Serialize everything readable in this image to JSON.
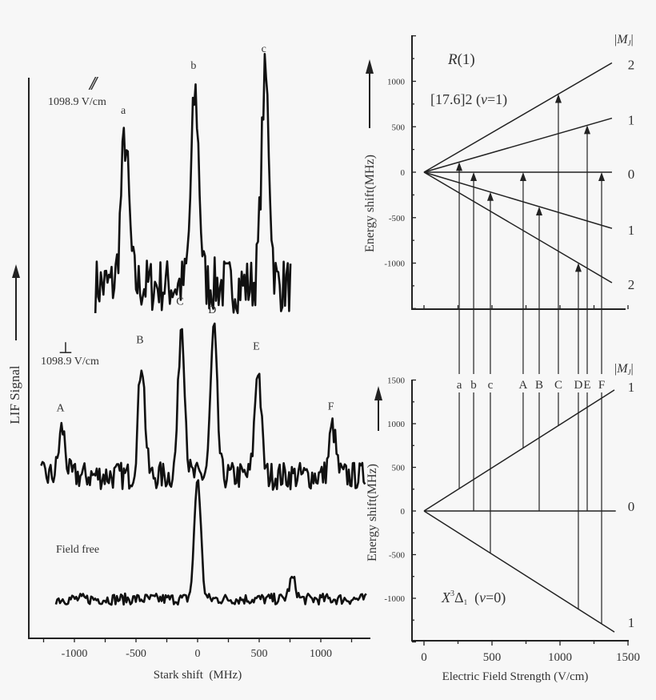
{
  "chart_data": [
    {
      "type": "line",
      "xlabel": "Stark shift  (MHz)",
      "ylabel": "LIF Signal",
      "xlim": [
        -1300,
        1400
      ],
      "xticks": [
        "-1000",
        "-500",
        "0",
        "500",
        "1000"
      ],
      "xtick_values": [
        -1000,
        -500,
        0,
        500,
        1000
      ],
      "series": [
        {
          "polarization": "//",
          "field": "1098.9 V/cm",
          "x_range": [
            -830,
            760
          ],
          "baseline": 63,
          "noise": 5,
          "peaks": [
            {
              "label": "a",
              "x": -590,
              "height": 26
            },
            {
              "label": "b",
              "x": -20,
              "height": 34
            },
            {
              "label": "c",
              "x": 550,
              "height": 37
            }
          ]
        },
        {
          "polarization": "⊥",
          "field": "1098.9 V/cm",
          "x_range": [
            -1270,
            1360
          ],
          "baseline": 29,
          "noise": 2.5,
          "peaks": [
            {
              "label": "A",
              "x": -1100,
              "height": 8.4
            },
            {
              "label": "B",
              "x": -455,
              "height": 20.6
            },
            {
              "label": "C",
              "x": -130,
              "height": 27.4
            },
            {
              "label": "D",
              "x": 132,
              "height": 25.9
            },
            {
              "label": "E",
              "x": 490,
              "height": 19.4
            },
            {
              "label": "F",
              "x": 1095,
              "height": 8.7
            }
          ]
        },
        {
          "polarization": "",
          "field": "Field free",
          "x_range": [
            -1150,
            1370
          ],
          "baseline": 7,
          "noise": 1,
          "peaks": [
            {
              "label": "",
              "x": 0,
              "height": 21.6
            },
            {
              "label": "",
              "x": 770,
              "height": 3.7
            }
          ]
        }
      ]
    },
    {
      "type": "line",
      "title": "R(1)",
      "title_italic": "R",
      "title_rest": "(1)",
      "state": {
        "pre": "[17.6]2 (",
        "v": "v",
        "post": "=1)"
      },
      "ylabel": "Energy shift(MHz)",
      "ylim": [
        -1500,
        1500
      ],
      "yticks": [
        "1000",
        "500",
        "0",
        "-500",
        "-1000"
      ],
      "ytick_values": [
        1000,
        500,
        0,
        -500,
        -1000
      ],
      "mj_header": {
        "bar": "|",
        "M": "M",
        "J": "J"
      },
      "levels": [
        {
          "mj": "2",
          "slope": 0.87
        },
        {
          "mj": "1",
          "slope": 0.43
        },
        {
          "mj": "0",
          "slope": 0
        },
        {
          "mj": "1",
          "slope": -0.447
        },
        {
          "mj": "2",
          "slope": -0.88
        }
      ],
      "field_max": 1382
    },
    {
      "type": "line",
      "state": {
        "X": "X",
        "sup": "3",
        "D": "Δ",
        "sub": "1",
        "pre": "  (",
        "v": "v",
        "post": "=0)"
      },
      "xlabel": "Electric Field Strength (V/cm)",
      "ylabel": "Energy shift(MHz)",
      "xlim": [
        0,
        1500
      ],
      "xticks": [
        "0",
        "500",
        "1000",
        "1500"
      ],
      "xtick_values": [
        0,
        500,
        1000,
        1500
      ],
      "ylim": [
        -1500,
        1500
      ],
      "yticks": [
        "1500",
        "1000",
        "500",
        "0",
        "-500",
        "-1000"
      ],
      "ytick_values": [
        1500,
        1000,
        500,
        0,
        -500,
        -1000
      ],
      "mj_header": {
        "bar": "|",
        "M": "M",
        "J": "J"
      },
      "levels": [
        {
          "mj": "1",
          "slope": 0.99
        },
        {
          "mj": "0",
          "slope": 0
        },
        {
          "mj": "1",
          "slope": -0.99
        }
      ],
      "field_max": 1400,
      "transitions": [
        {
          "label": "a",
          "field": 259,
          "lower": 0,
          "upper": 1
        },
        {
          "label": "b",
          "field": 365,
          "lower": 1,
          "upper": 2
        },
        {
          "label": "c",
          "field": 488,
          "lower": 2,
          "upper": 3
        },
        {
          "label": "A",
          "field": 729,
          "lower": 0,
          "upper": 2
        },
        {
          "label": "B",
          "field": 847,
          "lower": 1,
          "upper": 3
        },
        {
          "label": "C",
          "field": 988,
          "lower": 0,
          "upper": 0
        },
        {
          "label": "D",
          "field": 1135,
          "lower": 2,
          "upper": 4
        },
        {
          "label": "E",
          "field": 1200,
          "lower": 1,
          "upper": 1
        },
        {
          "label": "F",
          "field": 1306,
          "lower": 2,
          "upper": 2
        }
      ]
    }
  ]
}
